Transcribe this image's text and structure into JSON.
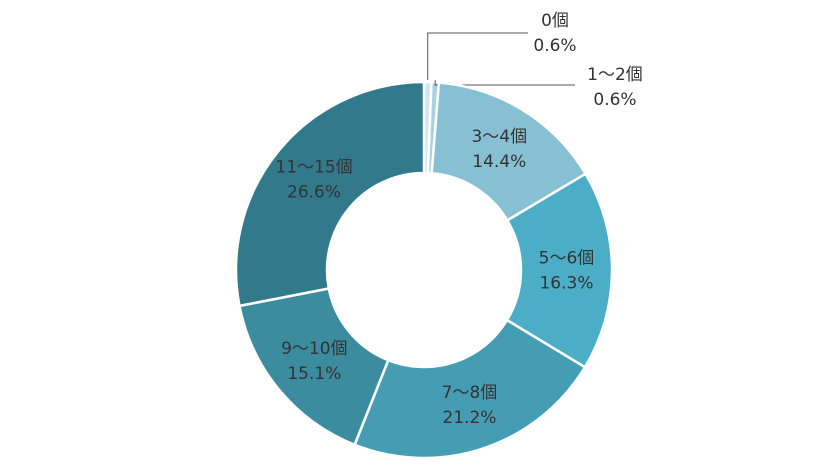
{
  "chart_data": {
    "type": "pie",
    "categories": [
      "0個",
      "1〜2個",
      "3〜4個",
      "5〜6個",
      "7〜8個",
      "9〜10個",
      "11〜15個"
    ],
    "values": [
      0.6,
      0.6,
      14.4,
      16.3,
      21.2,
      15.1,
      26.6
    ],
    "value_labels": [
      "0.6%",
      "0.6%",
      "14.4%",
      "16.3%",
      "21.2%",
      "15.1%",
      "26.6%"
    ],
    "colors": [
      "#d3e6ee",
      "#a9d1df",
      "#87c0d3",
      "#4badc6",
      "#459db4",
      "#3c8ca0",
      "#32798b"
    ]
  }
}
